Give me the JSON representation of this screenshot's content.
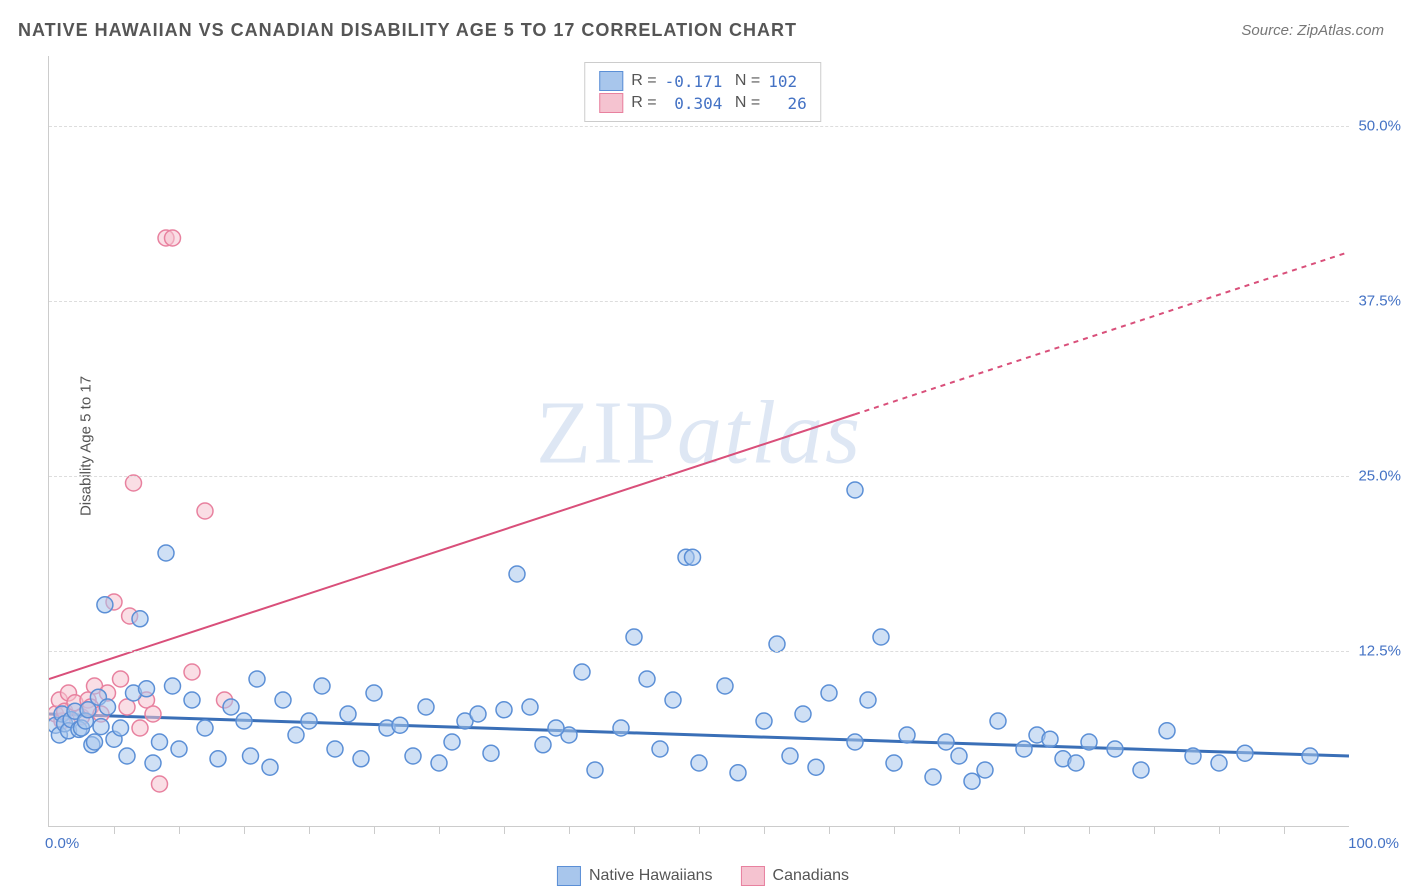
{
  "title": "NATIVE HAWAIIAN VS CANADIAN DISABILITY AGE 5 TO 17 CORRELATION CHART",
  "source_label": "Source:",
  "source_name": "ZipAtlas.com",
  "ylabel": "Disability Age 5 to 17",
  "watermark_a": "ZIP",
  "watermark_b": "atlas",
  "chart": {
    "type": "scatter",
    "xlim": [
      0,
      100
    ],
    "ylim": [
      0,
      55
    ],
    "ytick_values": [
      12.5,
      25.0,
      37.5,
      50.0
    ],
    "ytick_labels": [
      "12.5%",
      "25.0%",
      "37.5%",
      "50.0%"
    ],
    "xtick_positions": [
      5,
      10,
      15,
      20,
      25,
      30,
      35,
      40,
      45,
      50,
      55,
      60,
      65,
      70,
      75,
      80,
      85,
      90,
      95
    ],
    "xstart_label": "0.0%",
    "xend_label": "100.0%",
    "grid_color": "#dddddd",
    "axis_color": "#cccccc",
    "background_color": "#ffffff",
    "marker_radius": 8,
    "marker_opacity": 0.55,
    "marker_stroke_width": 1.5
  },
  "series": [
    {
      "name": "Native Hawaiians",
      "fill_color": "#a8c6ec",
      "stroke_color": "#5b8fd6",
      "R": "-0.171",
      "N": "102",
      "regression": {
        "y_at_x0": 8.0,
        "y_at_x100": 5.0,
        "color": "#3a6fb7",
        "width": 3,
        "dash_from_x": null
      },
      "points": [
        [
          0.5,
          7.2
        ],
        [
          0.8,
          6.5
        ],
        [
          1.0,
          8.0
        ],
        [
          1.2,
          7.3
        ],
        [
          1.5,
          6.8
        ],
        [
          1.7,
          7.6
        ],
        [
          2.0,
          8.2
        ],
        [
          2.3,
          6.9
        ],
        [
          2.5,
          7.0
        ],
        [
          2.8,
          7.5
        ],
        [
          3.0,
          8.3
        ],
        [
          3.3,
          5.8
        ],
        [
          3.5,
          6.0
        ],
        [
          3.8,
          9.2
        ],
        [
          4.0,
          7.1
        ],
        [
          4.3,
          15.8
        ],
        [
          4.5,
          8.5
        ],
        [
          5.0,
          6.2
        ],
        [
          5.5,
          7.0
        ],
        [
          6.0,
          5.0
        ],
        [
          6.5,
          9.5
        ],
        [
          7.0,
          14.8
        ],
        [
          7.5,
          9.8
        ],
        [
          8.0,
          4.5
        ],
        [
          8.5,
          6.0
        ],
        [
          9.0,
          19.5
        ],
        [
          9.5,
          10.0
        ],
        [
          10.0,
          5.5
        ],
        [
          11.0,
          9.0
        ],
        [
          12.0,
          7.0
        ],
        [
          13.0,
          4.8
        ],
        [
          14.0,
          8.5
        ],
        [
          15.0,
          7.5
        ],
        [
          15.5,
          5.0
        ],
        [
          16.0,
          10.5
        ],
        [
          17.0,
          4.2
        ],
        [
          18.0,
          9.0
        ],
        [
          19.0,
          6.5
        ],
        [
          20.0,
          7.5
        ],
        [
          21.0,
          10.0
        ],
        [
          22.0,
          5.5
        ],
        [
          23.0,
          8.0
        ],
        [
          24.0,
          4.8
        ],
        [
          25.0,
          9.5
        ],
        [
          26.0,
          7.0
        ],
        [
          27.0,
          7.2
        ],
        [
          28.0,
          5.0
        ],
        [
          29.0,
          8.5
        ],
        [
          30.0,
          4.5
        ],
        [
          31.0,
          6.0
        ],
        [
          32.0,
          7.5
        ],
        [
          33.0,
          8.0
        ],
        [
          34.0,
          5.2
        ],
        [
          35.0,
          8.3
        ],
        [
          36.0,
          18.0
        ],
        [
          37.0,
          8.5
        ],
        [
          38.0,
          5.8
        ],
        [
          40.0,
          6.5
        ],
        [
          41.0,
          11.0
        ],
        [
          42.0,
          4.0
        ],
        [
          44.0,
          7.0
        ],
        [
          45.0,
          13.5
        ],
        [
          46.0,
          10.5
        ],
        [
          47.0,
          5.5
        ],
        [
          48.0,
          9.0
        ],
        [
          49.0,
          19.2
        ],
        [
          49.5,
          19.2
        ],
        [
          50.0,
          4.5
        ],
        [
          52.0,
          10.0
        ],
        [
          53.0,
          3.8
        ],
        [
          55.0,
          7.5
        ],
        [
          56.0,
          13.0
        ],
        [
          57.0,
          5.0
        ],
        [
          58.0,
          8.0
        ],
        [
          59.0,
          4.2
        ],
        [
          60.0,
          9.5
        ],
        [
          62.0,
          6.0
        ],
        [
          63.0,
          9.0
        ],
        [
          64.0,
          13.5
        ],
        [
          65.0,
          4.5
        ],
        [
          66.0,
          6.5
        ],
        [
          68.0,
          3.5
        ],
        [
          69.0,
          6.0
        ],
        [
          70.0,
          5.0
        ],
        [
          71.0,
          3.2
        ],
        [
          72.0,
          4.0
        ],
        [
          73.0,
          7.5
        ],
        [
          75.0,
          5.5
        ],
        [
          76.0,
          6.5
        ],
        [
          77.0,
          6.2
        ],
        [
          78.0,
          4.8
        ],
        [
          79.0,
          4.5
        ],
        [
          80.0,
          6.0
        ],
        [
          82.0,
          5.5
        ],
        [
          84.0,
          4.0
        ],
        [
          86.0,
          6.8
        ],
        [
          88.0,
          5.0
        ],
        [
          90.0,
          4.5
        ],
        [
          92.0,
          5.2
        ],
        [
          97.0,
          5.0
        ],
        [
          62.0,
          24.0
        ],
        [
          39.0,
          7.0
        ]
      ]
    },
    {
      "name": "Canadians",
      "fill_color": "#f5c3d0",
      "stroke_color": "#e8819f",
      "R": "0.304",
      "N": "26",
      "regression": {
        "y_at_x0": 10.5,
        "y_at_x100": 41.0,
        "color": "#d94f7a",
        "width": 2,
        "dash_from_x": 62
      },
      "points": [
        [
          0.5,
          8.0
        ],
        [
          0.8,
          9.0
        ],
        [
          1.0,
          7.5
        ],
        [
          1.2,
          8.2
        ],
        [
          1.5,
          9.5
        ],
        [
          2.0,
          8.8
        ],
        [
          2.5,
          7.8
        ],
        [
          3.0,
          9.0
        ],
        [
          3.2,
          8.5
        ],
        [
          3.5,
          10.0
        ],
        [
          4.0,
          8.0
        ],
        [
          4.5,
          9.5
        ],
        [
          5.0,
          16.0
        ],
        [
          5.5,
          10.5
        ],
        [
          6.0,
          8.5
        ],
        [
          6.2,
          15.0
        ],
        [
          6.5,
          24.5
        ],
        [
          7.0,
          7.0
        ],
        [
          7.5,
          9.0
        ],
        [
          8.0,
          8.0
        ],
        [
          9.0,
          42.0
        ],
        [
          9.5,
          42.0
        ],
        [
          11.0,
          11.0
        ],
        [
          12.0,
          22.5
        ],
        [
          13.5,
          9.0
        ],
        [
          8.5,
          3.0
        ]
      ]
    }
  ],
  "legend": {
    "label_series1": "Native Hawaiians",
    "label_series2": "Canadians"
  }
}
